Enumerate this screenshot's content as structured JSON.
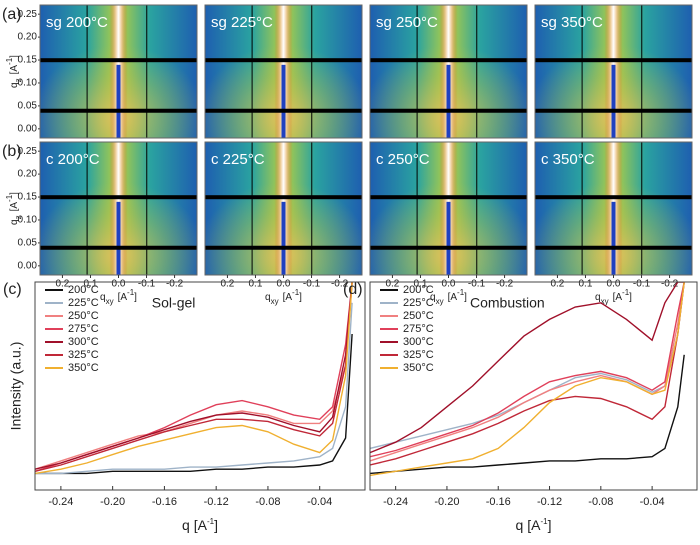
{
  "chart_data": [
    {
      "type": "image",
      "panel_label": "(a)",
      "ylabel": {
        "main": "q",
        "sub": "z",
        "unit": "[A",
        "sup": "-1",
        "close": "]"
      },
      "ylim": [
        -0.02,
        0.27
      ],
      "yticks": [
        {
          "value": 0,
          "label": "0.00"
        },
        0.05,
        {
          "value": 0.1,
          "label": "0.10"
        },
        0.15,
        {
          "value": 0.2,
          "label": "0.20"
        },
        0.25
      ],
      "xlim": [
        0.28,
        -0.28
      ],
      "images": [
        "sg 200°C",
        "sg 225°C",
        "sg 250°C",
        "sg 350°C"
      ]
    },
    {
      "type": "image",
      "panel_label": "(b)",
      "ylabel": {
        "main": "q",
        "sub": "z",
        "unit": "[A",
        "sup": "-1",
        "close": "]"
      },
      "xlabel": {
        "main": "q",
        "sub": "xy",
        "unit": "[A",
        "sup": "-1",
        "close": "]"
      },
      "ylim": [
        -0.02,
        0.27
      ],
      "yticks": [
        {
          "value": 0,
          "label": "0.00"
        },
        0.05,
        {
          "value": 0.1,
          "label": "0.10"
        },
        0.15,
        {
          "value": 0.2,
          "label": "0.20"
        },
        0.25
      ],
      "xlim": [
        0.28,
        -0.28
      ],
      "xticks": [
        0.2,
        0.1,
        {
          "value": 0,
          "label": "0.0"
        },
        -0.1,
        -0.2
      ],
      "images": [
        "c 200°C",
        "c 225°C",
        "c 250°C",
        "c 350°C"
      ]
    },
    {
      "type": "line",
      "panel_label": "(c)",
      "title": "Sol-gel",
      "ylabel": "Intensity (a.u.)",
      "xlabel": {
        "main": "q",
        "unit": "[A",
        "sup": "-1",
        "close": "]"
      },
      "xlim": [
        -0.26,
        -0.005
      ],
      "ylim": [
        0,
        100
      ],
      "xticks": [
        -0.24,
        {
          "value": -0.2,
          "label": "-0.20"
        },
        -0.16,
        -0.12,
        -0.08,
        -0.04
      ],
      "x": [
        -0.26,
        -0.24,
        -0.22,
        -0.2,
        -0.18,
        -0.16,
        -0.14,
        -0.12,
        -0.1,
        -0.08,
        -0.06,
        -0.04,
        -0.03,
        -0.02,
        -0.015
      ],
      "series": [
        {
          "name": "200°C",
          "color": "#111111",
          "values": [
            8,
            8,
            8,
            9,
            9,
            9,
            9,
            10,
            10,
            11,
            11,
            12,
            14,
            25,
            75
          ]
        },
        {
          "name": "225°C",
          "color": "#9fb3c8",
          "values": [
            8,
            8,
            9,
            10,
            10,
            10,
            11,
            11,
            12,
            13,
            14,
            16,
            20,
            40,
            90
          ]
        },
        {
          "name": "250°C",
          "color": "#f08080",
          "values": [
            10,
            14,
            18,
            22,
            26,
            28,
            32,
            36,
            38,
            36,
            32,
            32,
            38,
            60,
            100
          ]
        },
        {
          "name": "275°C",
          "color": "#e0405a",
          "values": [
            9,
            13,
            17,
            21,
            25,
            30,
            36,
            41,
            43,
            40,
            36,
            34,
            40,
            70,
            100
          ]
        },
        {
          "name": "300°C",
          "color": "#a0102a",
          "values": [
            10,
            13,
            17,
            21,
            25,
            29,
            33,
            36,
            37,
            35,
            31,
            28,
            35,
            65,
            100
          ]
        },
        {
          "name": "325°C",
          "color": "#c02838",
          "values": [
            9,
            12,
            16,
            20,
            24,
            28,
            31,
            34,
            34,
            33,
            29,
            26,
            32,
            60,
            100
          ]
        },
        {
          "name": "350°C",
          "color": "#f0b030",
          "values": [
            8,
            10,
            13,
            17,
            21,
            24,
            27,
            30,
            31,
            28,
            22,
            18,
            24,
            55,
            100
          ]
        }
      ]
    },
    {
      "type": "line",
      "panel_label": "(d)",
      "title": "Combustion",
      "xlabel": {
        "main": "q",
        "unit": "[A",
        "sup": "-1",
        "close": "]"
      },
      "xlim": [
        -0.26,
        -0.005
      ],
      "ylim": [
        0,
        100
      ],
      "xticks": [
        -0.24,
        {
          "value": -0.2,
          "label": "-0.20"
        },
        -0.16,
        -0.12,
        -0.08,
        -0.04
      ],
      "x": [
        -0.26,
        -0.24,
        -0.22,
        -0.2,
        -0.18,
        -0.16,
        -0.14,
        -0.12,
        -0.1,
        -0.08,
        -0.06,
        -0.04,
        -0.03,
        -0.02,
        -0.015
      ],
      "series": [
        {
          "name": "200°C",
          "color": "#111111",
          "values": [
            8,
            9,
            10,
            11,
            11,
            12,
            13,
            14,
            14,
            15,
            15,
            16,
            20,
            40,
            65
          ]
        },
        {
          "name": "225°C",
          "color": "#9fb3c8",
          "values": [
            20,
            23,
            26,
            29,
            32,
            36,
            42,
            48,
            54,
            56,
            53,
            47,
            50,
            75,
            100
          ]
        },
        {
          "name": "250°C",
          "color": "#f08080",
          "values": [
            14,
            18,
            22,
            26,
            30,
            35,
            42,
            48,
            52,
            55,
            52,
            46,
            50,
            80,
            100
          ]
        },
        {
          "name": "275°C",
          "color": "#e0405a",
          "values": [
            16,
            19,
            23,
            27,
            31,
            37,
            45,
            52,
            55,
            57,
            54,
            48,
            52,
            85,
            100
          ]
        },
        {
          "name": "300°C",
          "color": "#a0102a",
          "values": [
            18,
            23,
            30,
            40,
            50,
            62,
            74,
            82,
            88,
            90,
            82,
            72,
            90,
            100,
            100
          ]
        },
        {
          "name": "325°C",
          "color": "#c02838",
          "values": [
            12,
            15,
            19,
            23,
            27,
            32,
            38,
            43,
            45,
            44,
            40,
            34,
            40,
            75,
            100
          ]
        },
        {
          "name": "350°C",
          "color": "#f0b030",
          "values": [
            7,
            9,
            11,
            13,
            15,
            20,
            30,
            42,
            50,
            54,
            52,
            46,
            48,
            75,
            100
          ]
        }
      ]
    }
  ]
}
